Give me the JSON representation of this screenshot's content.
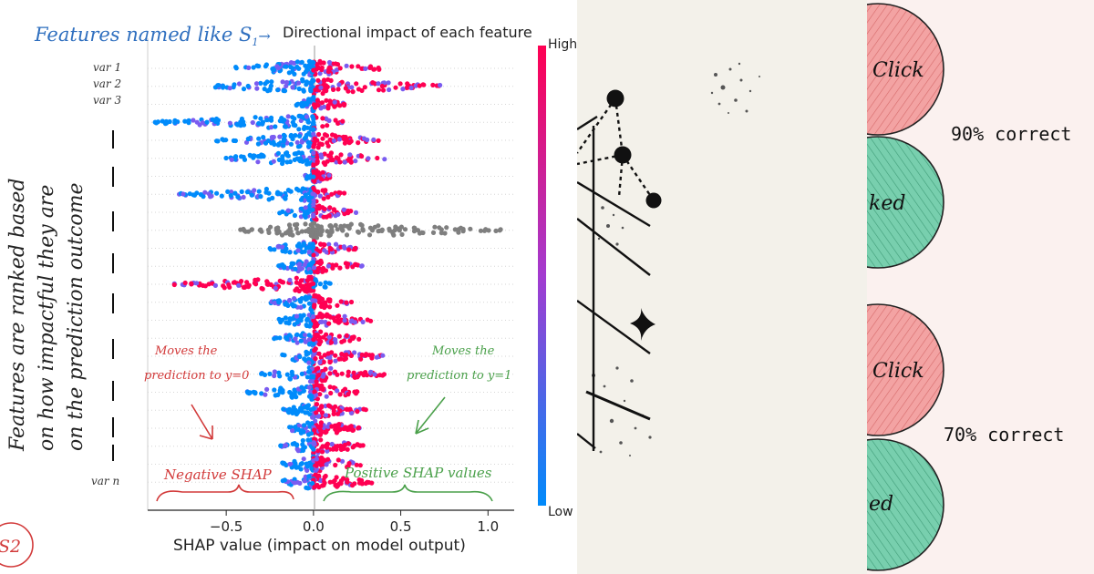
{
  "chart_data": {
    "type": "scatter",
    "subtype": "shap-beeswarm",
    "title": "Directional impact of each feature",
    "xlabel": "SHAP value (impact on model output)",
    "ylabel": "",
    "xlim": [
      -0.95,
      1.15
    ],
    "xticks": [
      -0.5,
      0.0,
      0.5,
      1.0
    ],
    "xtick_labels": [
      "−0.5",
      "0.0",
      "0.5",
      "1.0"
    ],
    "colorbar": {
      "high_label": "High",
      "low_label": "Low",
      "high_color": "#ff0052",
      "low_color": "#008bfb"
    },
    "features": [
      {
        "label": "var 1",
        "min": -0.48,
        "max": 0.4,
        "neg_color": "blue",
        "pos_color": "red"
      },
      {
        "label": "var 2",
        "min": -0.57,
        "max": 0.75,
        "neg_color": "blue",
        "pos_color": "red"
      },
      {
        "label": "var 3",
        "min": -0.1,
        "max": 0.18,
        "neg_color": "blue",
        "pos_color": "red"
      },
      {
        "label": "",
        "min": -0.91,
        "max": 0.18,
        "neg_color": "blue",
        "pos_color": "red"
      },
      {
        "label": "",
        "min": -0.57,
        "max": 0.38,
        "neg_color": "blue",
        "pos_color": "red"
      },
      {
        "label": "",
        "min": -0.55,
        "max": 0.42,
        "neg_color": "blue",
        "pos_color": "red"
      },
      {
        "label": "",
        "min": -0.05,
        "max": 0.1,
        "neg_color": "blue",
        "pos_color": "red"
      },
      {
        "label": "",
        "min": -0.78,
        "max": 0.2,
        "neg_color": "blue",
        "pos_color": "red"
      },
      {
        "label": "",
        "min": -0.2,
        "max": 0.25,
        "neg_color": "blue",
        "pos_color": "red"
      },
      {
        "label": "",
        "min": -0.42,
        "max": 1.09,
        "neg_color": "gray",
        "pos_color": "gray"
      },
      {
        "label": "",
        "min": -0.27,
        "max": 0.25,
        "neg_color": "blue",
        "pos_color": "red"
      },
      {
        "label": "",
        "min": -0.2,
        "max": 0.28,
        "neg_color": "blue",
        "pos_color": "red"
      },
      {
        "label": "",
        "min": -0.81,
        "max": 0.1,
        "neg_color": "red",
        "pos_color": "blue"
      },
      {
        "label": "",
        "min": -0.25,
        "max": 0.22,
        "neg_color": "blue",
        "pos_color": "red"
      },
      {
        "label": "",
        "min": -0.22,
        "max": 0.33,
        "neg_color": "blue",
        "pos_color": "red"
      },
      {
        "label": "",
        "min": -0.23,
        "max": 0.28,
        "neg_color": "blue",
        "pos_color": "red"
      },
      {
        "label": "",
        "min": -0.21,
        "max": 0.4,
        "neg_color": "blue",
        "pos_color": "red"
      },
      {
        "label": "",
        "min": -0.31,
        "max": 0.42,
        "neg_color": "blue",
        "pos_color": "red"
      },
      {
        "label": "",
        "min": -0.38,
        "max": 0.27,
        "neg_color": "blue",
        "pos_color": "red"
      },
      {
        "label": "",
        "min": -0.18,
        "max": 0.3,
        "neg_color": "blue",
        "pos_color": "red"
      },
      {
        "label": "",
        "min": -0.17,
        "max": 0.28,
        "neg_color": "blue",
        "pos_color": "red"
      },
      {
        "label": "",
        "min": -0.2,
        "max": 0.3,
        "neg_color": "blue",
        "pos_color": "red"
      },
      {
        "label": "",
        "min": -0.19,
        "max": 0.28,
        "neg_color": "blue",
        "pos_color": "red"
      },
      {
        "label": "var n",
        "min": -0.2,
        "max": 0.34,
        "neg_color": "blue",
        "pos_color": "red"
      }
    ]
  },
  "annotations": {
    "features_named": "Features named like",
    "features_named_symbol": "S",
    "features_named_sub": "1",
    "arrow": "→",
    "ranked_lines": [
      "Features are ranked based",
      "on how impactful they are",
      "on the prediction outcome"
    ],
    "moves_to_0": [
      "Moves the",
      "prediction to y=0"
    ],
    "moves_to_1": [
      "Moves the",
      "prediction to y=1"
    ],
    "negative_shap": "Negative SHAP",
    "positive_shap": "Positive SHAP values",
    "slide_badge": "S2"
  },
  "right_panel": {
    "items": [
      {
        "top_label": "Click",
        "bottom_label": "ked",
        "accuracy": "90% correct"
      },
      {
        "top_label": "Click",
        "bottom_label": "ed",
        "accuracy": "70% correct"
      }
    ],
    "colors": {
      "red_circle": "#f3a3a3",
      "green_circle": "#78cfae"
    }
  }
}
